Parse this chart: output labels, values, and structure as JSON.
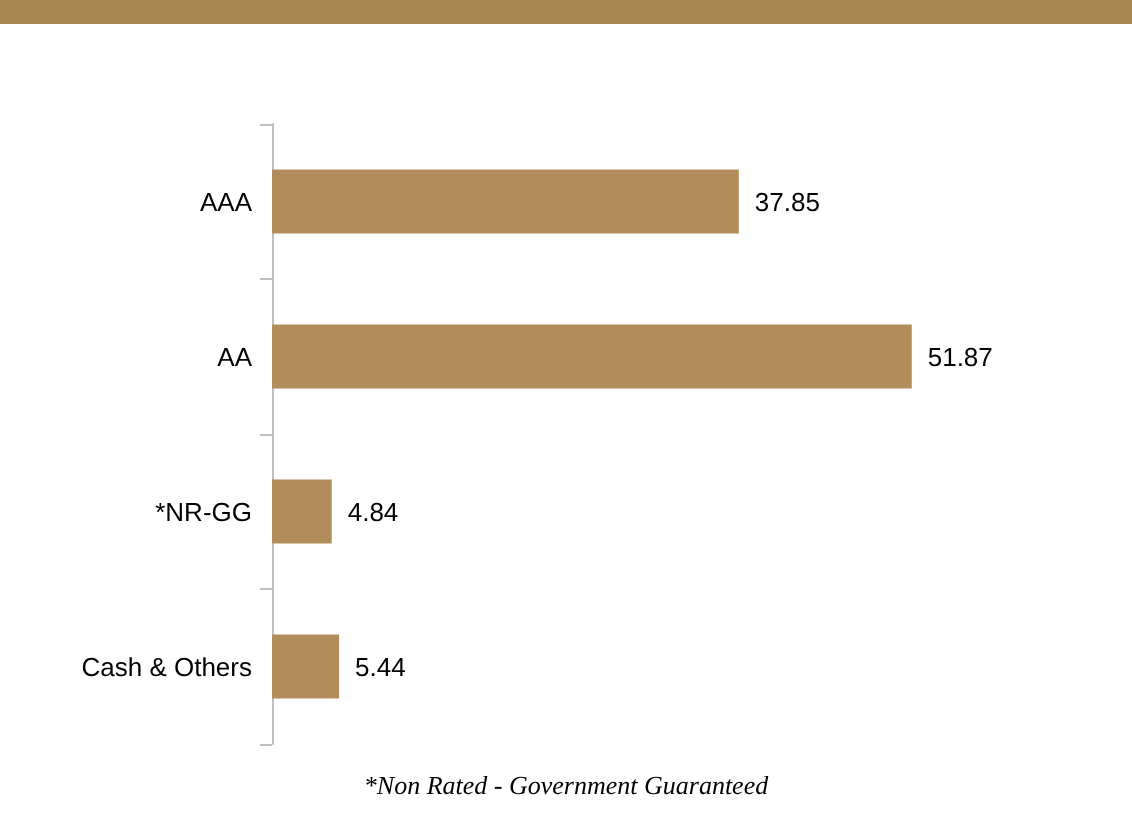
{
  "chart_data": {
    "type": "bar",
    "orientation": "horizontal",
    "categories": [
      "AAA",
      "AA",
      "*NR-GG",
      "Cash & Others"
    ],
    "values": [
      37.85,
      51.87,
      4.84,
      5.44
    ],
    "color": "#b08d5a",
    "data_labels": true,
    "annotations": [
      "*Non Rated - Government Guaranteed"
    ]
  }
}
